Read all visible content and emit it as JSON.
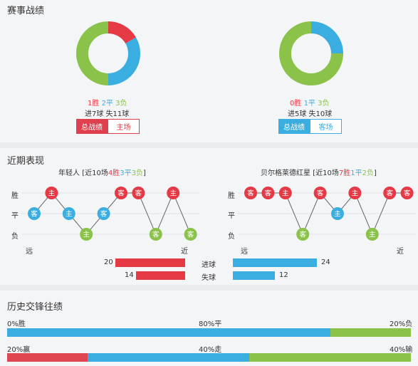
{
  "colors": {
    "win": "#e63946",
    "draw": "#3aaee0",
    "loss": "#8bc34a"
  },
  "record": {
    "title": "赛事战绩",
    "left": {
      "wins": "1胜",
      "draws": "2平",
      "losses": "3负",
      "goals": "进7球 失11球",
      "segments": [
        {
          "kind": "win",
          "value": 1
        },
        {
          "kind": "draw",
          "value": 2
        },
        {
          "kind": "loss",
          "value": 3
        }
      ],
      "btn_all": "总战绩",
      "btn_venue": "主场"
    },
    "right": {
      "wins": "0胜",
      "draws": "1平",
      "losses": "3负",
      "goals": "进5球 失10球",
      "segments": [
        {
          "kind": "win",
          "value": 0
        },
        {
          "kind": "draw",
          "value": 1
        },
        {
          "kind": "loss",
          "value": 3
        }
      ],
      "btn_all": "总战绩",
      "btn_venue": "客场"
    }
  },
  "recent": {
    "title": "近期表现",
    "row_labels": [
      "胜",
      "平",
      "负"
    ],
    "far": "远",
    "near": "近",
    "left": {
      "team": "年轻人",
      "summary": "[近10场",
      "wins": "4胜",
      "draws": "3平",
      "losses": "3负",
      "close": "]",
      "matches": [
        {
          "result": "draw",
          "venue": "客"
        },
        {
          "result": "win",
          "venue": "主"
        },
        {
          "result": "draw",
          "venue": "主"
        },
        {
          "result": "loss",
          "venue": "主"
        },
        {
          "result": "draw",
          "venue": "客"
        },
        {
          "result": "win",
          "venue": "客"
        },
        {
          "result": "win",
          "venue": "客"
        },
        {
          "result": "loss",
          "venue": "客"
        },
        {
          "result": "win",
          "venue": "主"
        },
        {
          "result": "loss",
          "venue": "客"
        }
      ]
    },
    "right": {
      "team": "贝尔格莱德红星",
      "summary": "[近10场",
      "wins": "7胜",
      "draws": "1平",
      "losses": "2负",
      "close": "]",
      "matches": [
        {
          "result": "win",
          "venue": "客"
        },
        {
          "result": "win",
          "venue": "客"
        },
        {
          "result": "win",
          "venue": "主"
        },
        {
          "result": "loss",
          "venue": "客"
        },
        {
          "result": "win",
          "venue": "客"
        },
        {
          "result": "draw",
          "venue": "主"
        },
        {
          "result": "win",
          "venue": "主"
        },
        {
          "result": "loss",
          "venue": "主"
        },
        {
          "result": "win",
          "venue": "客"
        },
        {
          "result": "win",
          "venue": "客"
        }
      ]
    },
    "goals": {
      "scored_label": "进球",
      "conceded_label": "失球",
      "left_scored": 20,
      "left_conceded": 14,
      "right_scored": 24,
      "right_conceded": 12
    }
  },
  "h2h": {
    "title": "历史交锋往绩",
    "row1": {
      "left": "0%胜",
      "mid": "80%平",
      "right": "20%负",
      "win_pct": 0,
      "draw_pct": 80,
      "loss_pct": 20
    },
    "row2": {
      "left": "20%赢",
      "mid": "40%走",
      "right": "40%输",
      "win_pct": 20,
      "draw_pct": 40,
      "loss_pct": 40
    }
  }
}
